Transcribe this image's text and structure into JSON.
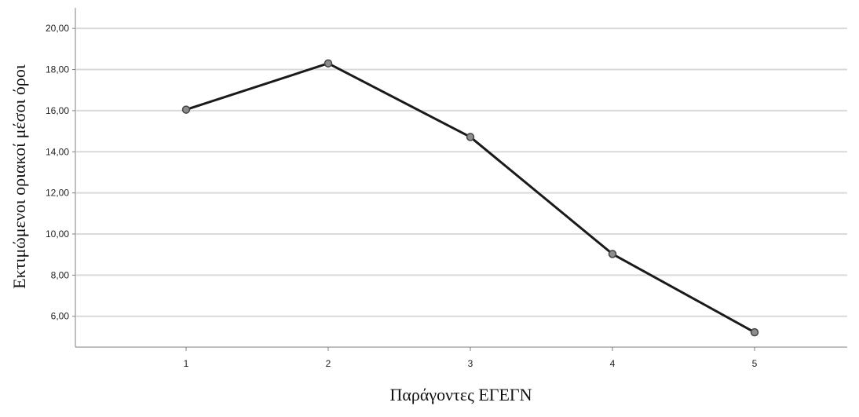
{
  "chart_data": {
    "type": "line",
    "x": [
      "1",
      "2",
      "3",
      "4",
      "5"
    ],
    "series": [
      {
        "values": [
          16.05,
          18.3,
          14.72,
          9.03,
          5.22
        ]
      }
    ],
    "xlabel": "Παράγοντες ΕΓΕΓΝ",
    "ylabel": "Εκτιμώμενοι οριακοί μέσοι όροι",
    "yticks": [
      "6,00",
      "8,00",
      "10,00",
      "12,00",
      "14,00",
      "16,00",
      "18,00",
      "20,00"
    ],
    "ylim": [
      4.5,
      21.0
    ],
    "grid": true,
    "colors": {
      "line": "#1a1a1a",
      "marker_fill": "#8c8c8c",
      "grid": "#d9d9d9",
      "axis": "#7f7f7f"
    }
  }
}
